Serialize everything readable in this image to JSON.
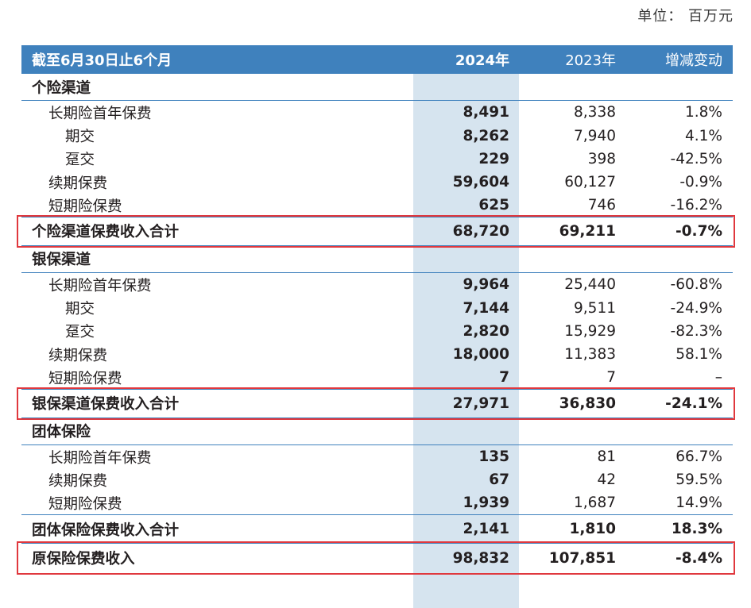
{
  "unit": "单位：  百万元",
  "header": {
    "label": "截至6月30日止6个月",
    "y2024": "2024年",
    "y2023": "2023年",
    "change": "增减变动"
  },
  "sections": [
    {
      "title": "个险渠道",
      "rows": [
        {
          "label": "长期险首年保费",
          "level": 1,
          "v2024": "8,491",
          "v2023": "8,338",
          "chg": "1.8%"
        },
        {
          "label": "期交",
          "level": 2,
          "v2024": "8,262",
          "v2023": "7,940",
          "chg": "4.1%"
        },
        {
          "label": "趸交",
          "level": 2,
          "v2024": "229",
          "v2023": "398",
          "chg": "-42.5%"
        },
        {
          "label": "续期保费",
          "level": 1,
          "v2024": "59,604",
          "v2023": "60,127",
          "chg": "-0.9%"
        },
        {
          "label": "短期险保费",
          "level": 1,
          "v2024": "625",
          "v2023": "746",
          "chg": "-16.2%"
        }
      ],
      "total": {
        "label": "个险渠道保费收入合计",
        "v2024": "68,720",
        "v2023": "69,211",
        "chg": "-0.7%"
      }
    },
    {
      "title": "银保渠道",
      "rows": [
        {
          "label": "长期险首年保费",
          "level": 1,
          "v2024": "9,964",
          "v2023": "25,440",
          "chg": "-60.8%"
        },
        {
          "label": "期交",
          "level": 2,
          "v2024": "7,144",
          "v2023": "9,511",
          "chg": "-24.9%"
        },
        {
          "label": "趸交",
          "level": 2,
          "v2024": "2,820",
          "v2023": "15,929",
          "chg": "-82.3%"
        },
        {
          "label": "续期保费",
          "level": 1,
          "v2024": "18,000",
          "v2023": "11,383",
          "chg": "58.1%"
        },
        {
          "label": "短期险保费",
          "level": 1,
          "v2024": "7",
          "v2023": "7",
          "chg": "–"
        }
      ],
      "total": {
        "label": "银保渠道保费收入合计",
        "v2024": "27,971",
        "v2023": "36,830",
        "chg": "-24.1%"
      }
    },
    {
      "title": "团体保险",
      "rows": [
        {
          "label": "长期险首年保费",
          "level": 1,
          "v2024": "135",
          "v2023": "81",
          "chg": "66.7%"
        },
        {
          "label": "续期保费",
          "level": 1,
          "v2024": "67",
          "v2023": "42",
          "chg": "59.5%"
        },
        {
          "label": "短期险保费",
          "level": 1,
          "v2024": "1,939",
          "v2023": "1,687",
          "chg": "14.9%"
        }
      ],
      "total": {
        "label": "团体保险保费收入合计",
        "v2024": "2,141",
        "v2023": "1,810",
        "chg": "18.3%"
      }
    }
  ],
  "grand_total": {
    "label": "原保险保费收入",
    "v2024": "98,832",
    "v2023": "107,851",
    "chg": "-8.4%"
  },
  "colors": {
    "header_bg": "#3f81bd",
    "highlight_col": "#d6e4ef",
    "box": "#e0383e"
  }
}
